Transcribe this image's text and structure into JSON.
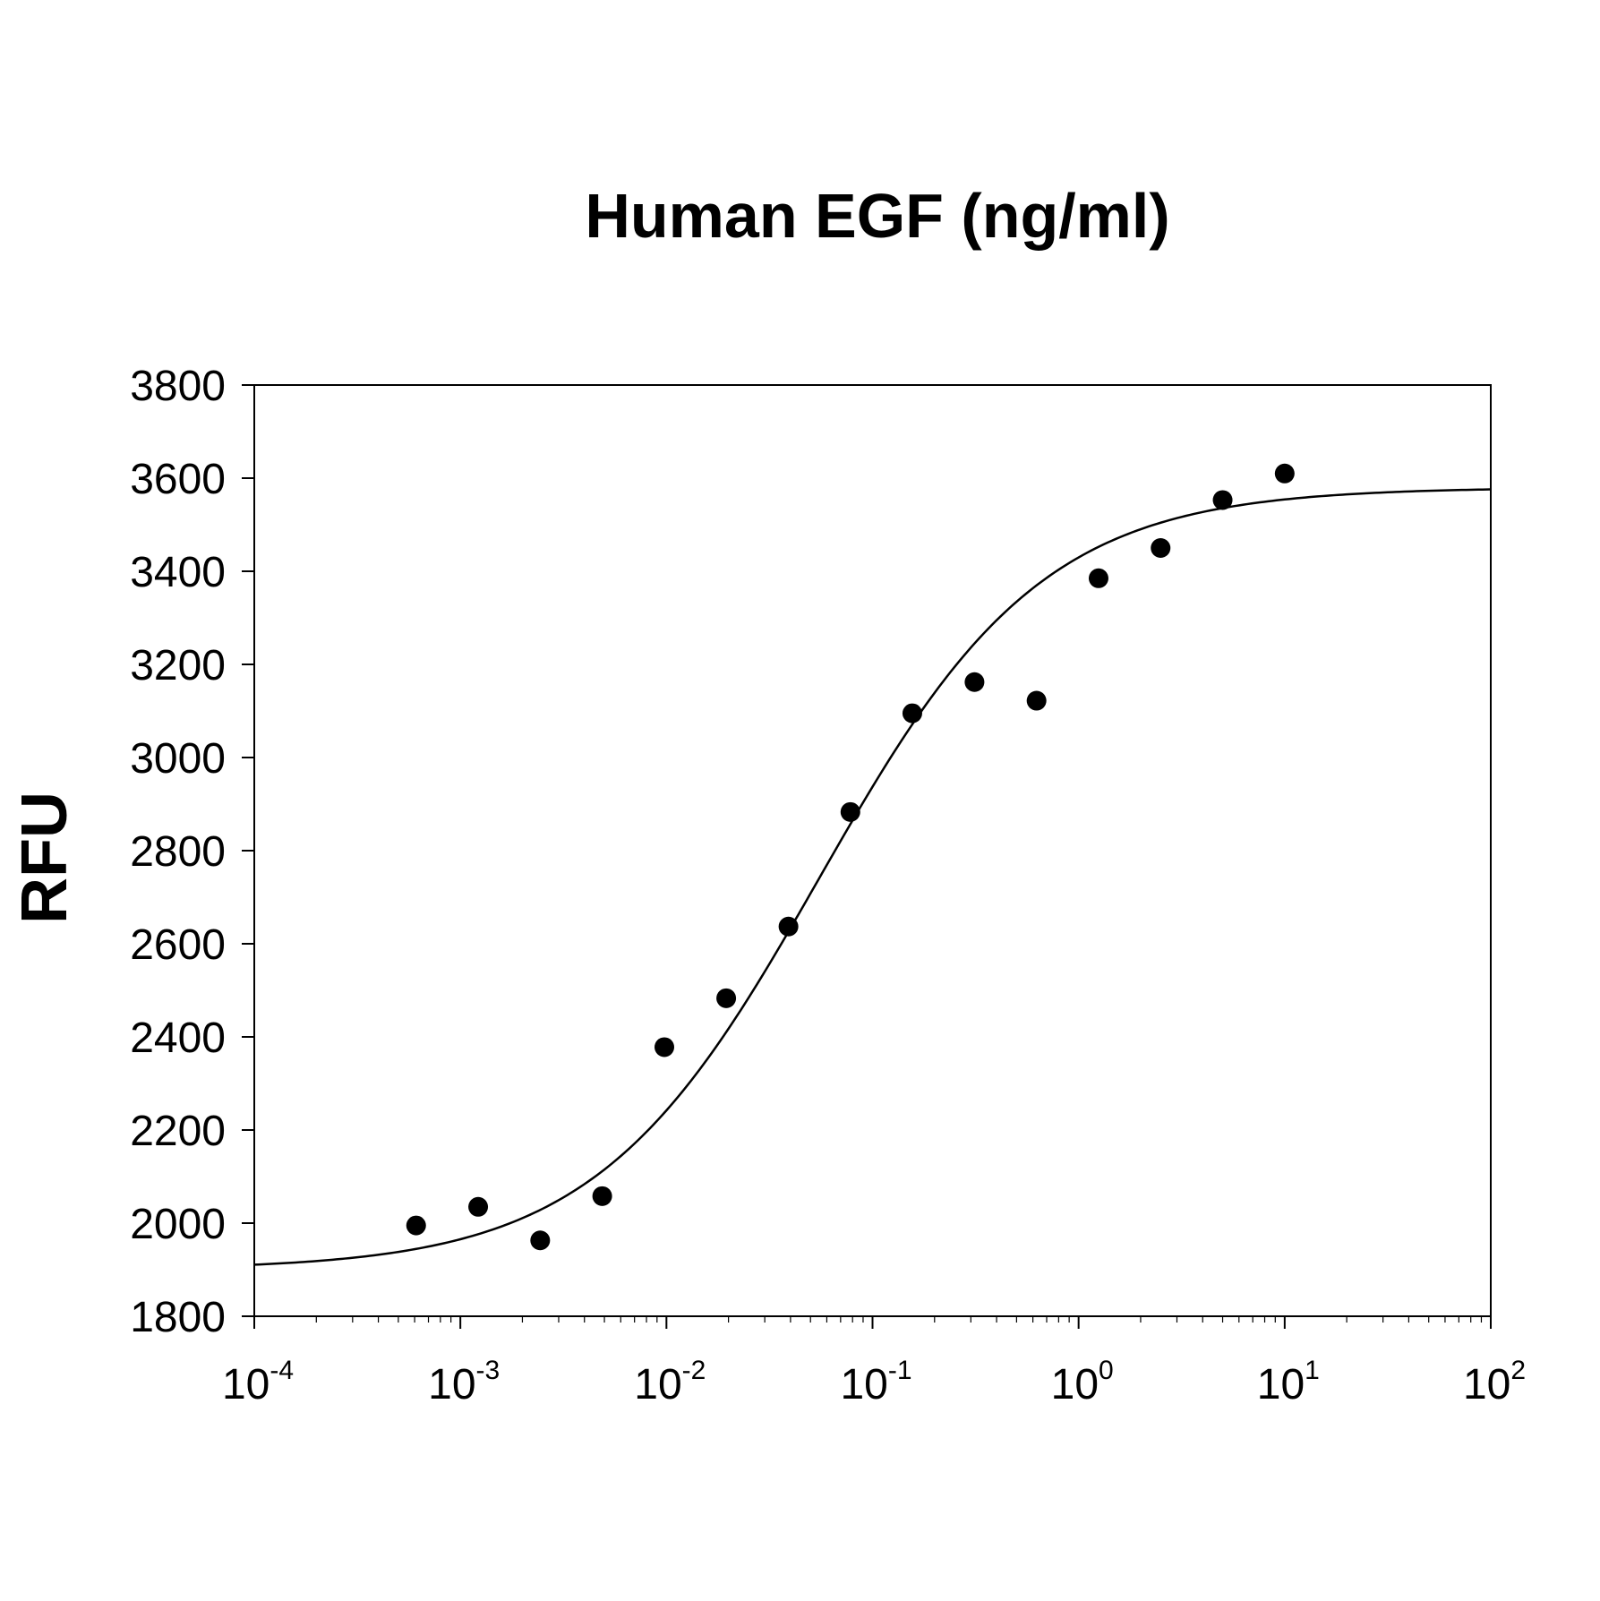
{
  "chart_data": {
    "type": "scatter",
    "title": "Human EGF (ng/ml)",
    "xlabel": "",
    "ylabel": "RFU",
    "x_scale": "log",
    "xlim": [
      0.0001,
      100
    ],
    "ylim": [
      1800,
      3800
    ],
    "x_ticks": [
      {
        "base": "10",
        "exp": "-4",
        "value": 0.0001
      },
      {
        "base": "10",
        "exp": "-3",
        "value": 0.001
      },
      {
        "base": "10",
        "exp": "-2",
        "value": 0.01
      },
      {
        "base": "10",
        "exp": "-1",
        "value": 0.1
      },
      {
        "base": "10",
        "exp": "0",
        "value": 1
      },
      {
        "base": "10",
        "exp": "1",
        "value": 10
      },
      {
        "base": "10",
        "exp": "2",
        "value": 100
      }
    ],
    "y_ticks": [
      "1800",
      "2000",
      "2200",
      "2400",
      "2600",
      "2800",
      "3000",
      "3200",
      "3400",
      "3600",
      "3800"
    ],
    "grid": false,
    "legend": "none",
    "series": [
      {
        "type": "scatter",
        "color": "#000000",
        "x": [
          0.00061,
          0.00122,
          0.00244,
          0.00488,
          0.00977,
          0.0195,
          0.0391,
          0.0781,
          0.156,
          0.3125,
          0.625,
          1.25,
          2.5,
          5,
          10
        ],
        "y": [
          1995,
          2035,
          1963,
          2058,
          2378,
          2483,
          2637,
          2883,
          3095,
          3162,
          3122,
          3385,
          3450,
          3553,
          3610
        ]
      },
      {
        "type": "line",
        "color": "#000000",
        "fit": "4PL",
        "bottom": 1900,
        "top": 3580,
        "ec50": 0.055,
        "hill": 0.8
      }
    ]
  }
}
